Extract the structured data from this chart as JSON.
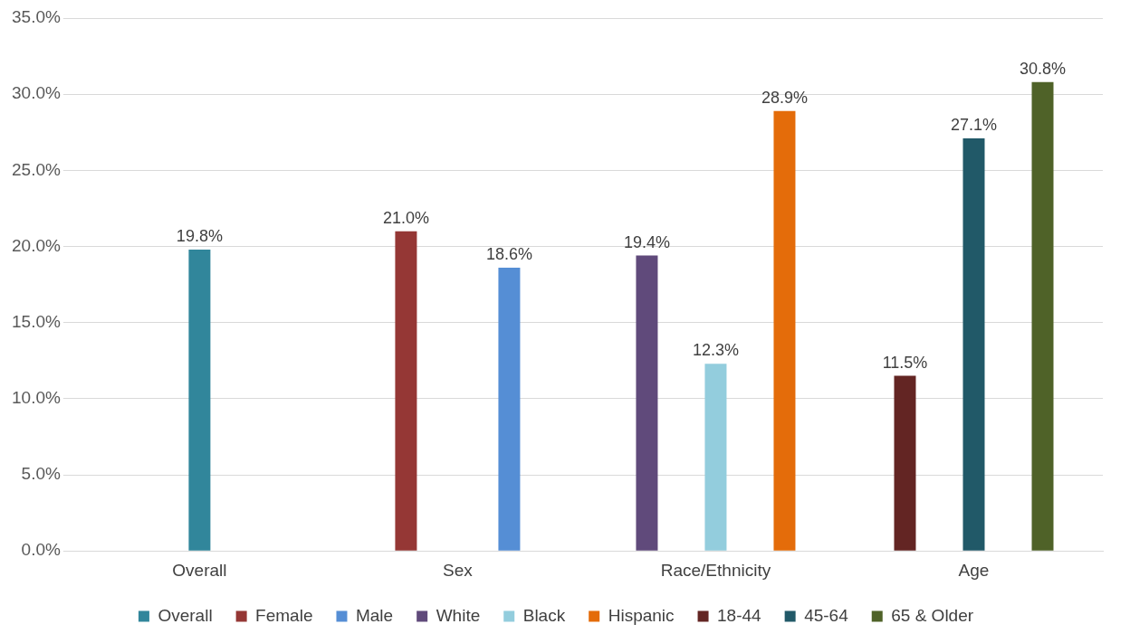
{
  "chart_data": {
    "type": "bar",
    "categories": [
      "Overall",
      "Sex",
      "Race/Ethnicity",
      "Age"
    ],
    "series": [
      {
        "name": "Overall",
        "color": "#31869b",
        "values": [
          19.8,
          null,
          null,
          null
        ],
        "value_labels": [
          "19.8%",
          null,
          null,
          null
        ]
      },
      {
        "name": "Female",
        "color": "#953735",
        "values": [
          null,
          21.0,
          null,
          null
        ],
        "value_labels": [
          null,
          "21.0%",
          null,
          null
        ]
      },
      {
        "name": "Male",
        "color": "#558ed5",
        "values": [
          null,
          18.6,
          null,
          null
        ],
        "value_labels": [
          null,
          "18.6%",
          null,
          null
        ]
      },
      {
        "name": "White",
        "color": "#604a7b",
        "values": [
          null,
          null,
          19.4,
          null
        ],
        "value_labels": [
          null,
          null,
          "19.4%",
          null
        ]
      },
      {
        "name": "Black",
        "color": "#93cddd",
        "values": [
          null,
          null,
          12.3,
          null
        ],
        "value_labels": [
          null,
          null,
          "12.3%",
          null
        ]
      },
      {
        "name": "Hispanic",
        "color": "#e46c0a",
        "values": [
          null,
          null,
          28.9,
          null
        ],
        "value_labels": [
          null,
          null,
          "28.9%",
          null
        ]
      },
      {
        "name": "18-44",
        "color": "#632523",
        "values": [
          null,
          null,
          null,
          11.5
        ],
        "value_labels": [
          null,
          null,
          null,
          "11.5%"
        ]
      },
      {
        "name": "45-64",
        "color": "#215968",
        "values": [
          null,
          null,
          null,
          27.1
        ],
        "value_labels": [
          null,
          null,
          null,
          "27.1%"
        ]
      },
      {
        "name": "65 & Older",
        "color": "#4f6228",
        "values": [
          null,
          null,
          null,
          30.8
        ],
        "value_labels": [
          null,
          null,
          null,
          "30.8%"
        ]
      }
    ],
    "ylim": [
      0,
      35
    ],
    "yticks": [
      {
        "value": 0,
        "label": "0.0%"
      },
      {
        "value": 5,
        "label": "5.0%"
      },
      {
        "value": 10,
        "label": "10.0%"
      },
      {
        "value": 15,
        "label": "15.0%"
      },
      {
        "value": 20,
        "label": "20.0%"
      },
      {
        "value": 25,
        "label": "25.0%"
      },
      {
        "value": 30,
        "label": "30.0%"
      },
      {
        "value": 35,
        "label": "35.0%"
      }
    ],
    "grid": "y",
    "legend": "bottom"
  }
}
